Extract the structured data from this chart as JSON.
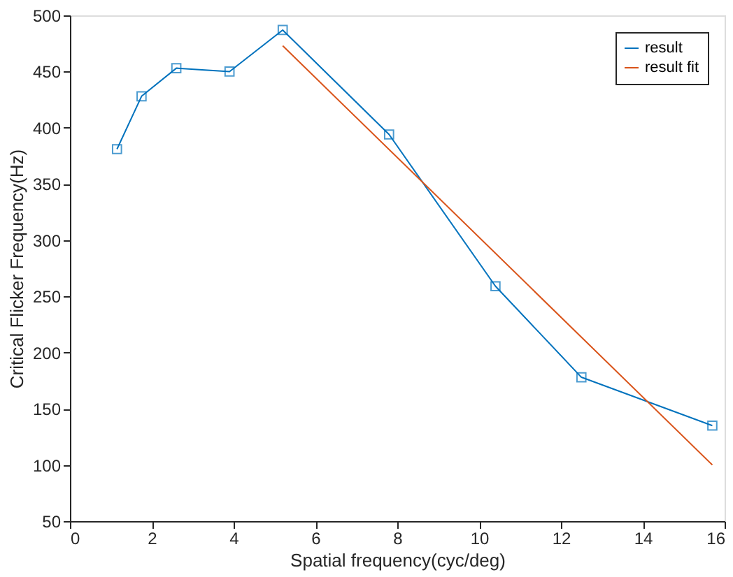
{
  "chart_data": {
    "type": "line",
    "xlabel": "Spatial frequency(cyc/deg)",
    "ylabel": "Critical Flicker Frequency(Hz)",
    "xlim": [
      0,
      16
    ],
    "xticks": [
      0,
      2,
      4,
      6,
      8,
      10,
      12,
      14,
      16
    ],
    "ylim": [
      50,
      500
    ],
    "yticks": [
      50,
      100,
      150,
      200,
      250,
      300,
      350,
      400,
      450,
      500
    ],
    "grid": false,
    "legend": "top right",
    "series": [
      {
        "name": "result",
        "color": "#0072bd",
        "marker": "square",
        "x": [
          1.15,
          1.75,
          2.6,
          3.9,
          5.2,
          7.8,
          10.4,
          12.5,
          15.7
        ],
        "values": [
          381,
          428,
          453,
          450,
          487,
          394,
          259,
          178,
          135
        ]
      },
      {
        "name": "result fit",
        "color": "#d95319",
        "marker": "none",
        "x": [
          5.2,
          15.7
        ],
        "values": [
          473,
          100
        ]
      }
    ]
  }
}
